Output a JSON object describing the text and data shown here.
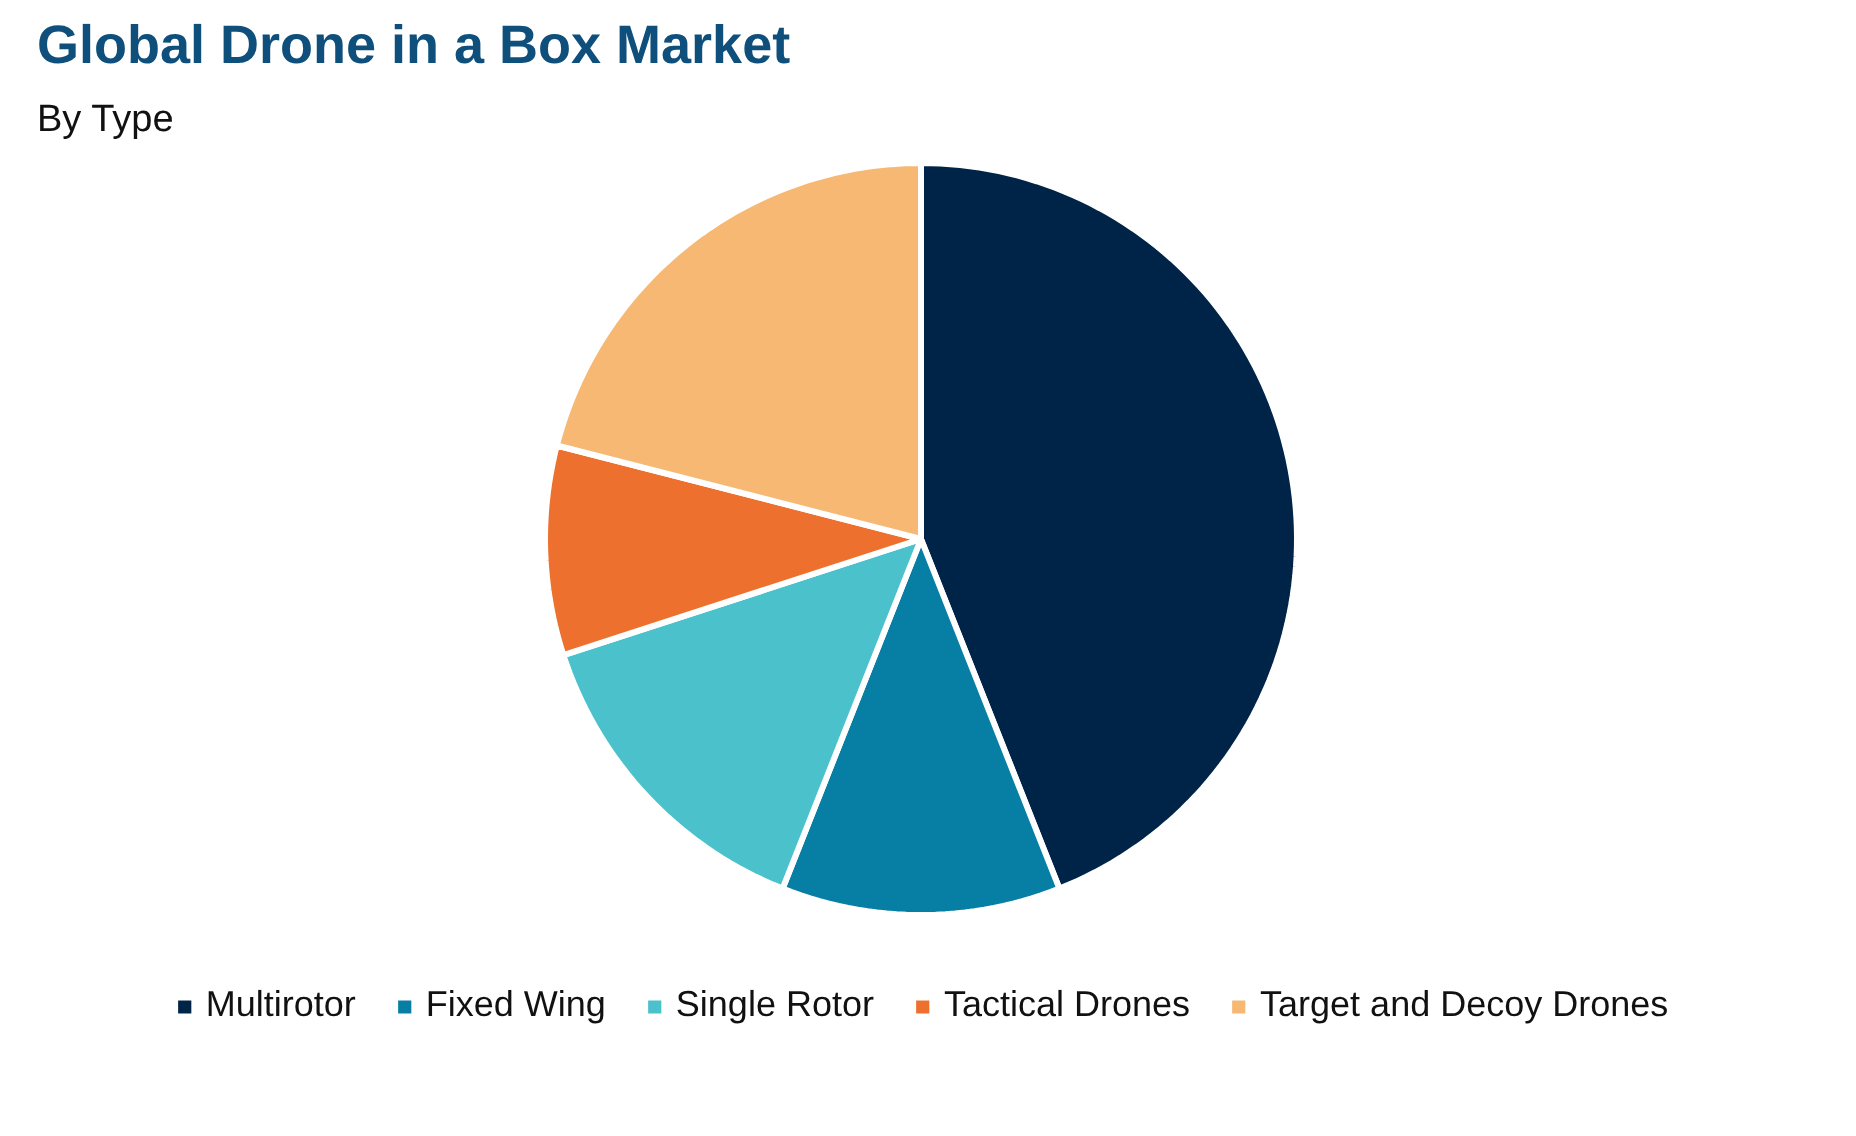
{
  "chart_data": {
    "type": "pie",
    "title": "Global Drone in a Box Market",
    "subtitle": "By Type",
    "categories": [
      "Multirotor",
      "Fixed Wing",
      "Single Rotor",
      "Tactical Drones",
      "Target and Decoy Drones"
    ],
    "values": [
      44,
      12,
      14,
      9,
      21
    ],
    "colors": [
      "#002447",
      "#077fa5",
      "#4bc1cc",
      "#ee702e",
      "#f6b872"
    ],
    "legend": "bottom"
  }
}
